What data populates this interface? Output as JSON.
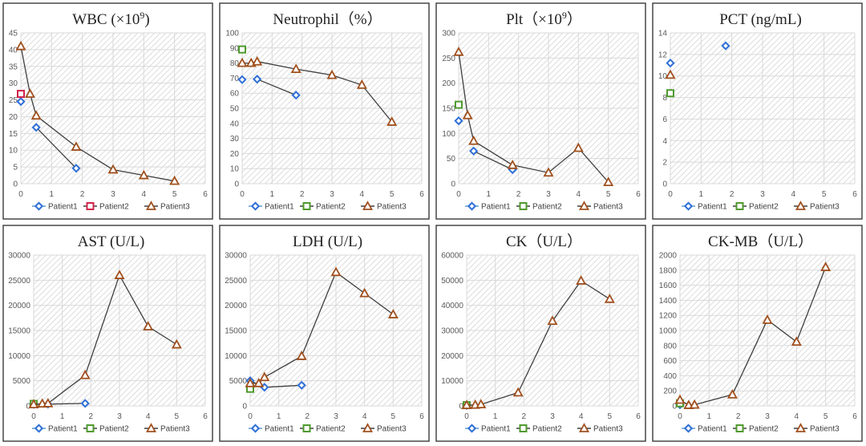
{
  "legend": [
    "Patient1",
    "Patient2",
    "Patient3"
  ],
  "colors": {
    "patient1_marker": "#2f6fd6",
    "patient1_line": "#5b9bd5",
    "patient2_marker_default": "#4f9a2e",
    "patient2_marker_wbc": "#d0244a",
    "patient3_marker": "#a0501e",
    "series_line": "#3f3f3f"
  },
  "chart_data": [
    {
      "type": "line",
      "title": "WBC (×10⁹)",
      "title_main": "WBC (×10",
      "title_sup": "9",
      "title_end": ")",
      "xlim": [
        0,
        6
      ],
      "xticks": [
        0,
        1,
        2,
        3,
        4,
        5,
        6
      ],
      "ylim": [
        0,
        45
      ],
      "yticks": [
        0,
        5,
        10,
        15,
        20,
        25,
        30,
        35,
        40,
        45
      ],
      "grid": true,
      "legend_position": "bottom",
      "series": [
        {
          "name": "Patient1",
          "points": [
            [
              0,
              24.5
            ],
            [
              0.5,
              16.8
            ],
            [
              1.8,
              4.6
            ]
          ],
          "line_from": 1
        },
        {
          "name": "Patient2",
          "points": [
            [
              0,
              26.8
            ]
          ],
          "line_from": 0
        },
        {
          "name": "Patient3",
          "points": [
            [
              0,
              41
            ],
            [
              0.3,
              26.8
            ],
            [
              0.5,
              20.3
            ],
            [
              1.8,
              11
            ],
            [
              3,
              4.2
            ],
            [
              4,
              2.5
            ],
            [
              5,
              0.8
            ]
          ],
          "line_from": 0
        }
      ]
    },
    {
      "type": "line",
      "title": "Neutrophil（%）",
      "title_main": "Neutrophil（%）",
      "xlim": [
        0,
        6
      ],
      "xticks": [
        0,
        1,
        2,
        3,
        4,
        5,
        6
      ],
      "ylim": [
        0,
        100
      ],
      "yticks": [
        0,
        10,
        20,
        30,
        40,
        50,
        60,
        70,
        80,
        90,
        100
      ],
      "grid": true,
      "legend_position": "bottom",
      "series": [
        {
          "name": "Patient1",
          "points": [
            [
              0,
              69
            ],
            [
              0.5,
              69.3
            ],
            [
              1.8,
              58.7
            ]
          ],
          "line_from": 1
        },
        {
          "name": "Patient2",
          "points": [
            [
              0,
              89
            ]
          ],
          "line_from": 0
        },
        {
          "name": "Patient3",
          "points": [
            [
              0,
              80
            ],
            [
              0.3,
              80
            ],
            [
              0.5,
              81
            ],
            [
              1.8,
              76
            ],
            [
              3,
              72
            ],
            [
              4,
              65.5
            ],
            [
              5,
              41
            ]
          ],
          "line_from": 0
        }
      ]
    },
    {
      "type": "line",
      "title": "Plt（×10⁹）",
      "title_main": "Plt（×10",
      "title_sup": "9",
      "title_end": "）",
      "xlim": [
        0,
        6
      ],
      "xticks": [
        0,
        1,
        2,
        3,
        4,
        5,
        6
      ],
      "ylim": [
        0,
        300
      ],
      "yticks": [
        0,
        50,
        100,
        150,
        200,
        250,
        300
      ],
      "grid": true,
      "legend_position": "bottom",
      "series": [
        {
          "name": "Patient1",
          "points": [
            [
              0,
              125
            ],
            [
              0.5,
              65
            ],
            [
              1.8,
              28
            ]
          ],
          "line_from": 1
        },
        {
          "name": "Patient2",
          "points": [
            [
              0,
              157
            ]
          ],
          "line_from": 0
        },
        {
          "name": "Patient3",
          "points": [
            [
              0,
              262
            ],
            [
              0.3,
              136
            ],
            [
              0.5,
              85
            ],
            [
              1.8,
              37
            ],
            [
              3,
              22
            ],
            [
              4,
              71
            ],
            [
              5,
              3
            ]
          ],
          "line_from": 0
        }
      ]
    },
    {
      "type": "scatter",
      "title": "PCT (ng/mL)",
      "title_main": "PCT (ng/mL)",
      "xlim": [
        0,
        6
      ],
      "xticks": [
        0,
        1,
        2,
        3,
        4,
        5,
        6
      ],
      "ylim": [
        0,
        14
      ],
      "yticks": [
        0,
        2,
        4,
        6,
        8,
        10,
        12,
        14
      ],
      "grid": true,
      "legend_position": "bottom",
      "series": [
        {
          "name": "Patient1",
          "points": [
            [
              0,
              11.2
            ],
            [
              1.8,
              12.8
            ]
          ],
          "line_from": 99
        },
        {
          "name": "Patient2",
          "points": [
            [
              0,
              8.4
            ]
          ],
          "line_from": 99
        },
        {
          "name": "Patient3",
          "points": [
            [
              0,
              10.1
            ]
          ],
          "line_from": 99
        }
      ]
    },
    {
      "type": "line",
      "title": "AST (U/L)",
      "title_main": "AST (U/L)",
      "xlim": [
        0,
        6
      ],
      "xticks": [
        0,
        1,
        2,
        3,
        4,
        5,
        6
      ],
      "ylim": [
        0,
        30000
      ],
      "yticks": [
        0,
        5000,
        10000,
        15000,
        20000,
        25000,
        30000
      ],
      "grid": true,
      "legend_position": "bottom",
      "series": [
        {
          "name": "Patient1",
          "points": [
            [
              0,
              300
            ],
            [
              0.5,
              350
            ],
            [
              1.8,
              500
            ]
          ],
          "line_from": 0
        },
        {
          "name": "Patient2",
          "points": [
            [
              0,
              400
            ]
          ],
          "line_from": 0
        },
        {
          "name": "Patient3",
          "points": [
            [
              0,
              300
            ],
            [
              0.3,
              450
            ],
            [
              0.5,
              500
            ],
            [
              1.8,
              6100
            ],
            [
              3,
              26000
            ],
            [
              4,
              15800
            ],
            [
              5,
              12200
            ]
          ],
          "line_from": 0
        }
      ]
    },
    {
      "type": "line",
      "title": "LDH (U/L)",
      "title_main": "LDH (U/L)",
      "xlim": [
        0,
        6
      ],
      "xticks": [
        0,
        1,
        2,
        3,
        4,
        5,
        6
      ],
      "ylim": [
        0,
        30000
      ],
      "yticks": [
        0,
        5000,
        10000,
        15000,
        20000,
        25000,
        30000
      ],
      "grid": true,
      "legend_position": "bottom",
      "series": [
        {
          "name": "Patient1",
          "points": [
            [
              0,
              5000
            ],
            [
              0.5,
              3700
            ],
            [
              1.8,
              4100
            ]
          ],
          "line_from": 0
        },
        {
          "name": "Patient2",
          "points": [
            [
              0,
              3400
            ]
          ],
          "line_from": 0
        },
        {
          "name": "Patient3",
          "points": [
            [
              0,
              4500
            ],
            [
              0.3,
              4500
            ],
            [
              0.5,
              5700
            ],
            [
              1.8,
              9900
            ],
            [
              3,
              26600
            ],
            [
              4,
              22400
            ],
            [
              5,
              18200
            ]
          ],
          "line_from": 0
        }
      ]
    },
    {
      "type": "line",
      "title": "CK（U/L）",
      "title_main": "CK（U/L）",
      "xlim": [
        0,
        6
      ],
      "xticks": [
        0,
        1,
        2,
        3,
        4,
        5,
        6
      ],
      "ylim": [
        0,
        60000
      ],
      "yticks": [
        0,
        10000,
        20000,
        30000,
        40000,
        50000,
        60000
      ],
      "grid": true,
      "legend_position": "bottom",
      "series": [
        {
          "name": "Patient1",
          "points": [
            [
              0,
              200
            ]
          ],
          "line_from": 0
        },
        {
          "name": "Patient2",
          "points": [
            [
              0,
              300
            ]
          ],
          "line_from": 0
        },
        {
          "name": "Patient3",
          "points": [
            [
              0,
              300
            ],
            [
              0.3,
              400
            ],
            [
              0.5,
              600
            ],
            [
              1.8,
              5300
            ],
            [
              3,
              33800
            ],
            [
              4,
              49800
            ],
            [
              5,
              42500
            ]
          ],
          "line_from": 0
        }
      ]
    },
    {
      "type": "line",
      "title": "CK-MB（U/L）",
      "title_main": "CK-MB（U/L）",
      "xlim": [
        0,
        6
      ],
      "xticks": [
        0,
        1,
        2,
        3,
        4,
        5,
        6
      ],
      "ylim": [
        0,
        2000
      ],
      "yticks": [
        0,
        200,
        400,
        600,
        800,
        1000,
        1200,
        1400,
        1600,
        1800,
        2000
      ],
      "grid": true,
      "legend_position": "bottom",
      "series": [
        {
          "name": "Patient1",
          "points": [
            [
              0,
              15
            ]
          ],
          "line_from": 0
        },
        {
          "name": "Patient2",
          "points": [
            [
              0,
              35
            ]
          ],
          "line_from": 0
        },
        {
          "name": "Patient3",
          "points": [
            [
              0,
              80
            ],
            [
              0.3,
              10
            ],
            [
              0.5,
              15
            ],
            [
              1.8,
              150
            ],
            [
              3,
              1140
            ],
            [
              4,
              850
            ],
            [
              5,
              1840
            ]
          ],
          "line_from": 0
        }
      ]
    }
  ]
}
